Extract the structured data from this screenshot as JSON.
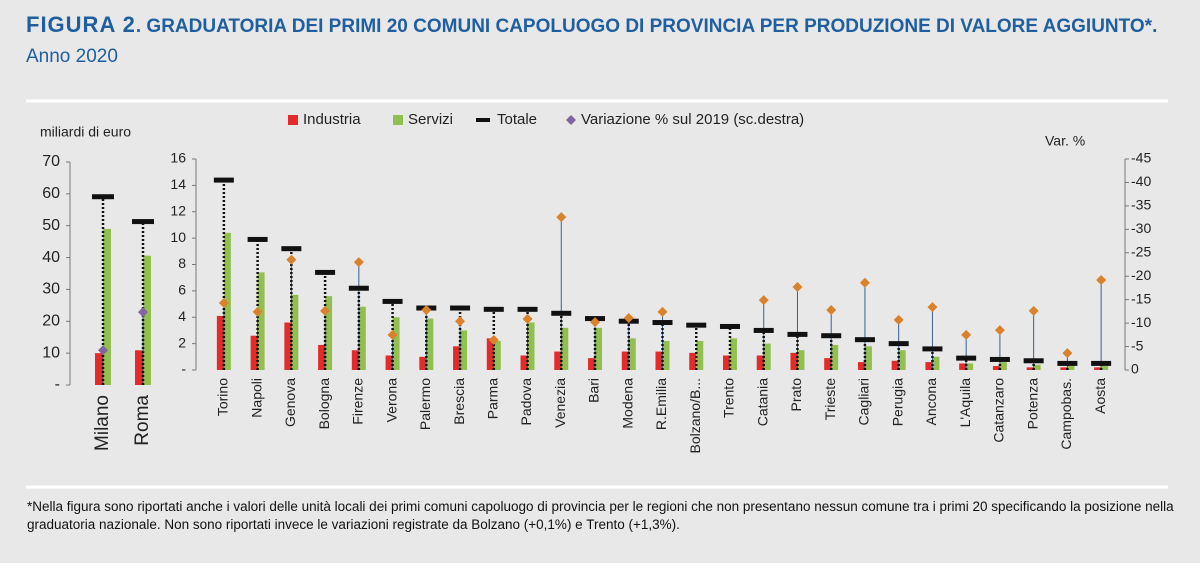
{
  "title_label": "FIGURA 2",
  "title": ". GRADUATORIA DEI PRIMI 20 COMUNI CAPOLUOGO DI PROVINCIA PER PRODUZIONE DI VALORE AGGIUNTO*.",
  "subtitle": "Anno 2020",
  "footnote": "*Nella figura sono riportati anche i valori delle unità locali dei primi comuni capoluogo di provincia per le regioni che non presentano nessun comune tra i primi 20 specificando la posizione nella graduatoria nazionale. Non sono riportati invece le variazioni registrate da Bolzano (+0,1%) e Trento (+1,3%).",
  "chart_data": [
    {
      "type": "bar",
      "ylabel": "miliardi di euro",
      "categories": [
        "Milano",
        "Roma"
      ],
      "ylim": [
        0,
        70
      ],
      "yticks": [
        {
          "value": 0,
          "label": "-"
        },
        10,
        20,
        30,
        40,
        50,
        60,
        70
      ],
      "y2lim": [
        0,
        -45
      ],
      "series": [
        {
          "color": "#e32b2b",
          "mark": "bar",
          "values": [
            10,
            10.9
          ]
        },
        {
          "color": "#92c050",
          "mark": "bar",
          "values": [
            49,
            40.6
          ]
        },
        {
          "color": "#111111",
          "mark": "dash",
          "values": [
            59.1,
            51.3
          ]
        },
        {
          "color": "#8064a2",
          "mark": "diamond",
          "axis": "y2",
          "values": [
            -7,
            -14.7
          ]
        }
      ]
    },
    {
      "type": "bar",
      "y2label": "Var. %",
      "categories": [
        "Torino",
        "Napoli",
        "Genova",
        "Bologna",
        "Firenze",
        "Verona",
        "Palermo",
        "Brescia",
        "Parma",
        "Padova",
        "Venezia",
        "Bari",
        "Modena",
        "R.Emilia",
        "Bolzano/B...",
        "Trento",
        "Catania",
        "Prato",
        "Trieste",
        "Cagliari",
        "Perugia",
        "Ancona",
        "L'Aquila",
        "Catanzaro",
        "Potenza",
        "Campobas.",
        "Aosta"
      ],
      "ylim": [
        0,
        16
      ],
      "yticks": [
        {
          "value": 0,
          "label": "-"
        },
        2,
        4,
        6,
        8,
        10,
        12,
        14,
        16
      ],
      "y2lim": [
        0,
        -45
      ],
      "y2ticks": [
        0,
        -5,
        -10,
        -15,
        -20,
        -25,
        -30,
        -35,
        -40,
        -45
      ],
      "series": [
        {
          "name": "Industria",
          "color": "#e32b2b",
          "mark": "bar",
          "values": [
            4.1,
            2.6,
            3.6,
            1.9,
            1.5,
            1.1,
            1.0,
            1.8,
            2.4,
            1.1,
            1.4,
            0.9,
            1.4,
            1.4,
            1.3,
            1.1,
            1.1,
            1.3,
            0.9,
            0.6,
            0.7,
            0.6,
            0.5,
            0.3,
            0.2,
            0.2,
            0.2
          ]
        },
        {
          "name": "Servizi",
          "color": "#92c050",
          "mark": "bar",
          "values": [
            10.4,
            7.4,
            5.7,
            5.6,
            4.8,
            4.0,
            3.9,
            3.0,
            2.2,
            3.6,
            3.2,
            3.2,
            2.4,
            2.2,
            2.2,
            2.4,
            2.0,
            1.5,
            1.9,
            1.8,
            1.5,
            1.0,
            0.5,
            0.6,
            0.4,
            0.3,
            0.3
          ]
        },
        {
          "name": "Totale",
          "color": "#111111",
          "mark": "dash",
          "values": [
            14.4,
            9.9,
            9.2,
            7.4,
            6.2,
            5.2,
            4.7,
            4.7,
            4.6,
            4.6,
            4.3,
            3.9,
            3.7,
            3.6,
            3.4,
            3.3,
            3.0,
            2.7,
            2.6,
            2.3,
            2.0,
            1.6,
            0.9,
            0.8,
            0.7,
            0.5,
            0.5
          ]
        },
        {
          "name": "Variazione % sul 2019 (sc.destra)",
          "color": "#d9822b",
          "mark": "diamond",
          "axis": "y2",
          "values": [
            -14.3,
            -12.4,
            -23.5,
            -12.6,
            -23.0,
            -7.5,
            -12.8,
            -10.4,
            -6.4,
            -10.9,
            -32.6,
            -10.2,
            -11.1,
            -12.4,
            null,
            null,
            -14.9,
            -17.7,
            -12.8,
            -18.6,
            -10.7,
            -13.4,
            -7.5,
            -8.5,
            -12.6,
            -3.6,
            -19.2
          ]
        }
      ]
    }
  ]
}
